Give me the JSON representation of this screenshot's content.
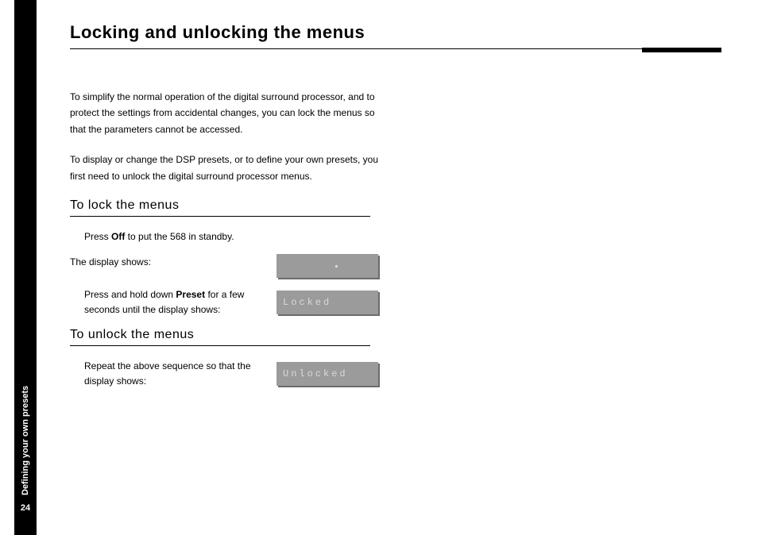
{
  "sidebar": {
    "section_label": "Defining your own presets",
    "page_number": "24"
  },
  "title": "Locking and unlocking the menus",
  "intro_paragraphs": [
    "To simplify the normal operation of the digital surround processor, and to protect the settings from accidental changes, you can lock the menus so that the parameters cannot be accessed.",
    "To display or change the DSP presets, or to define your own presets, you first need to unlock the digital surround processor menus."
  ],
  "sections": {
    "lock": {
      "heading": "To lock the menus",
      "step1_pre": "Press ",
      "step1_bold": "Off",
      "step1_post": " to put the 568 in standby.",
      "display_intro": "The display shows:",
      "display1_text": "",
      "step2_pre": "Press and hold down ",
      "step2_bold": "Preset",
      "step2_post": " for a few seconds until the display shows:",
      "display2_text": "Locked"
    },
    "unlock": {
      "heading": "To unlock the menus",
      "step_text": "Repeat the above sequence so that the display shows:",
      "display_text": "Unlocked"
    }
  },
  "styling": {
    "page_bg": "#ffffff",
    "sidebar_bg": "#000000",
    "sidebar_text": "#ffffff",
    "display_bg": "#9b9b9b",
    "display_shadow": "#6b6b6b",
    "display_text": "#d9d9d9",
    "body_text": "#000000",
    "title_fontsize": 22,
    "heading_fontsize": 16,
    "body_fontsize": 12,
    "display_font": "Courier New"
  }
}
